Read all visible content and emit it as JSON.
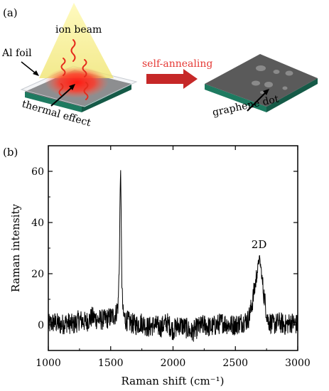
{
  "panel_a": {
    "label": "(a)",
    "ion_beam_label": "ion beam",
    "al_foil_label": "Al foil",
    "self_annealing_label": "self-annealing",
    "thermal_effect_label": "thermal effect",
    "graphene_dot_label": "graphene dot",
    "colors": {
      "beam": "#f2ee8a",
      "hotspot": "#ff2a1f",
      "substrate_top": "#5b5b5b",
      "substrate_side": "#1e7a60",
      "arrow": "#c62828",
      "self_annealing_text": "#e53935"
    }
  },
  "panel_b": {
    "label": "(b)",
    "peak_label": "2D"
  },
  "chart_data": {
    "type": "line",
    "xlabel": "Raman shift (cm⁻¹)",
    "ylabel": "Raman intensity",
    "xlim": [
      1000,
      3000
    ],
    "ylim": [
      -10,
      70
    ],
    "x_ticks": [
      1000,
      1500,
      2000,
      2500,
      3000
    ],
    "y_ticks": [
      0,
      20,
      40,
      60
    ],
    "grid": false,
    "legend": "none",
    "series": [
      {
        "x": [
          1000,
          1050,
          1100,
          1150,
          1200,
          1250,
          1300,
          1350,
          1400,
          1450,
          1500,
          1540,
          1560,
          1570,
          1575,
          1580,
          1585,
          1590,
          1600,
          1620,
          1650,
          1700,
          1750,
          1800,
          1850,
          1900,
          1950,
          2000,
          2050,
          2100,
          2150,
          2200,
          2250,
          2300,
          2350,
          2400,
          2450,
          2500,
          2550,
          2600,
          2620,
          2640,
          2660,
          2680,
          2690,
          2700,
          2710,
          2720,
          2740,
          2760,
          2780,
          2800,
          2850,
          2900,
          2950,
          3000
        ],
        "y": [
          0,
          1,
          0,
          1,
          0,
          2,
          1,
          3,
          2,
          2,
          3,
          4,
          8,
          25,
          50,
          61,
          40,
          15,
          4,
          2,
          1,
          0,
          1,
          -1,
          0,
          -1,
          1,
          -2,
          0,
          -1,
          -3,
          -1,
          0,
          -1,
          0,
          1,
          0,
          0,
          1,
          2,
          5,
          10,
          16,
          22,
          26,
          24,
          20,
          15,
          8,
          2,
          1,
          0,
          1,
          0,
          1,
          0
        ]
      }
    ]
  }
}
